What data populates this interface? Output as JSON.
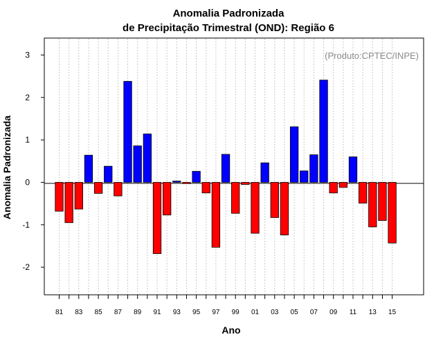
{
  "chart_data": {
    "type": "bar",
    "title": [
      "Anomalia Padronizada",
      "de Precipitação Trimestral (OND): Região 6"
    ],
    "xlabel": "Ano",
    "ylabel": "Anomalia Padronizada",
    "credit": "(Produto:CPTEC/INPE)",
    "ylim": [
      -2.65,
      3.4
    ],
    "yticks": [
      3,
      2,
      1,
      0,
      -1,
      -2
    ],
    "positive_color": "#0000ff",
    "negative_color": "#ff0000",
    "categories": [
      "81",
      "82",
      "83",
      "84",
      "85",
      "86",
      "87",
      "88",
      "89",
      "90",
      "91",
      "92",
      "93",
      "94",
      "95",
      "96",
      "97",
      "98",
      "99",
      "00",
      "01",
      "02",
      "03",
      "04",
      "05",
      "06",
      "07",
      "08",
      "09",
      "10",
      "11",
      "12",
      "13",
      "14",
      "15"
    ],
    "xtick_labels": [
      "81",
      "83",
      "85",
      "87",
      "89",
      "91",
      "93",
      "95",
      "97",
      "99",
      "01",
      "03",
      "05",
      "07",
      "09",
      "11",
      "13",
      "15"
    ],
    "values": [
      -0.68,
      -0.95,
      -0.63,
      0.64,
      -0.26,
      0.38,
      -0.32,
      2.38,
      0.86,
      1.14,
      -1.68,
      -0.77,
      0.03,
      -0.03,
      0.26,
      -0.25,
      -1.53,
      0.66,
      -0.73,
      -0.05,
      -1.2,
      0.46,
      -0.83,
      -1.24,
      1.31,
      0.27,
      0.65,
      2.41,
      -0.25,
      -0.12,
      0.6,
      -0.49,
      -1.05,
      -0.9,
      -1.43
    ]
  }
}
